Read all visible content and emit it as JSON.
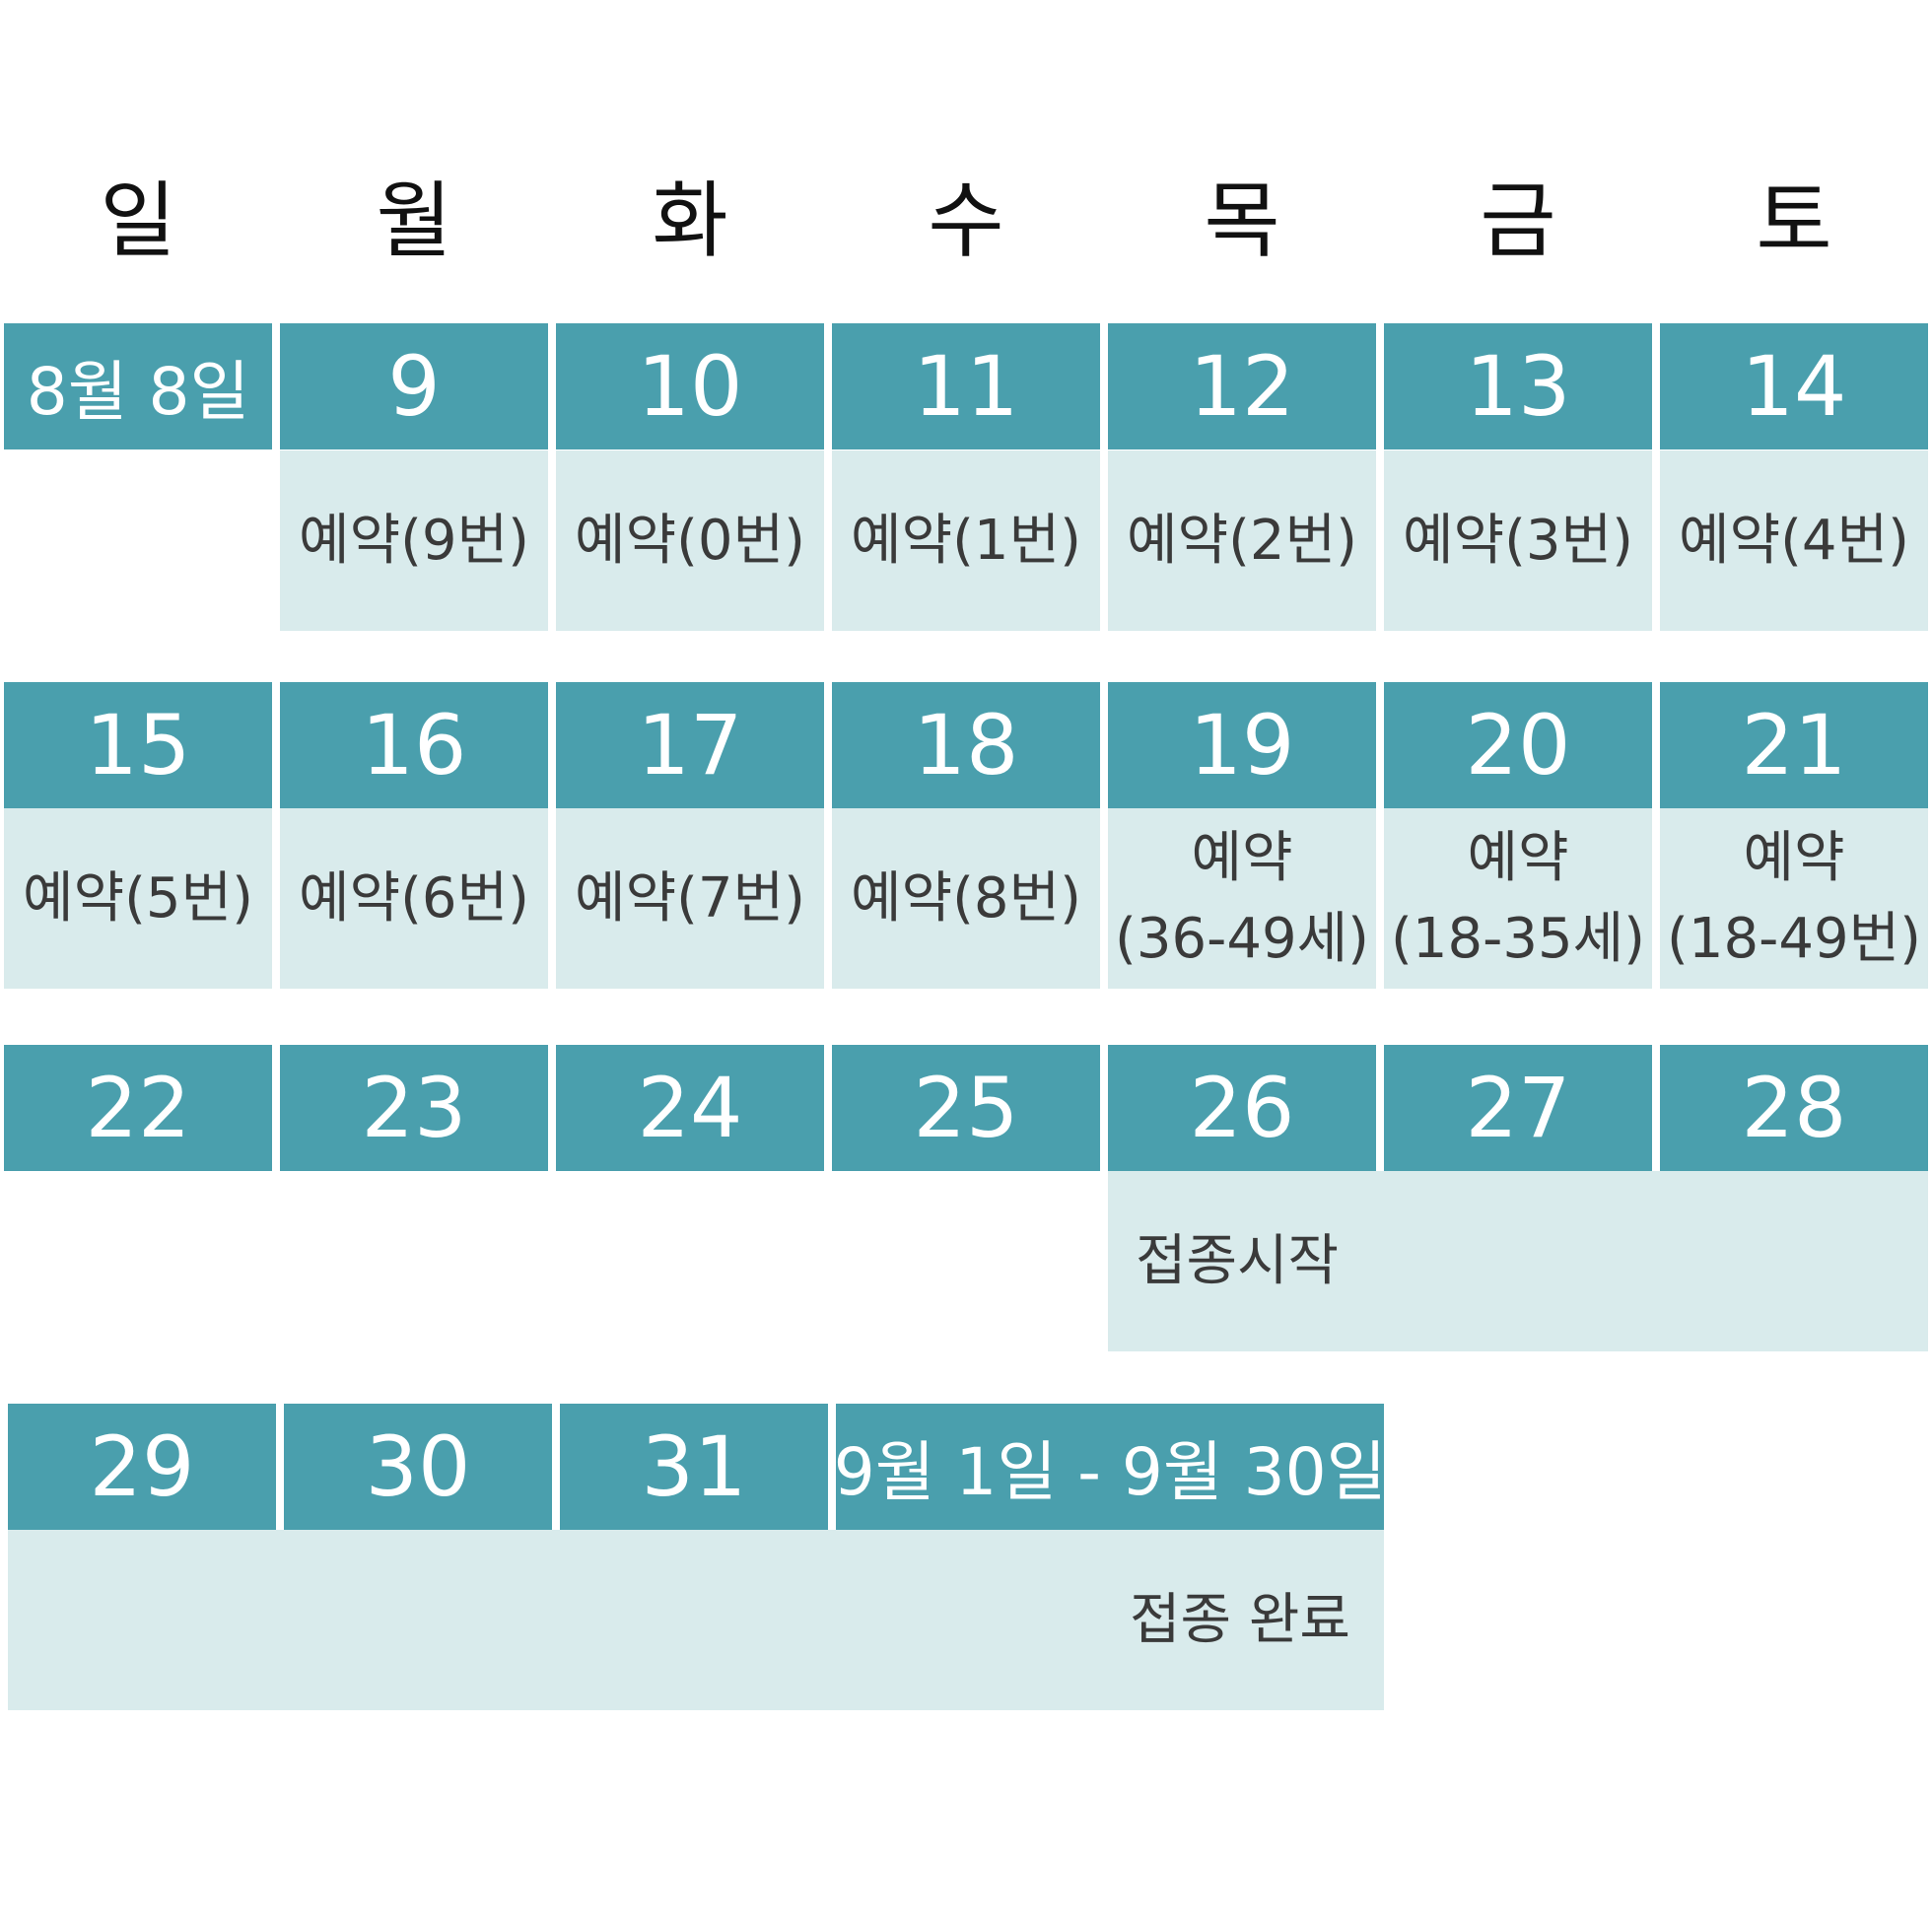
{
  "weekdays": [
    "일",
    "월",
    "화",
    "수",
    "목",
    "금",
    "토"
  ],
  "colors": {
    "header_bg": "#4a9fad",
    "cell_bg": "#d9ebec",
    "header_text": "#ffffff",
    "cell_text": "#3a3a3a"
  },
  "week1": {
    "days": [
      "8월 8일",
      "9",
      "10",
      "11",
      "12",
      "13",
      "14"
    ],
    "events": [
      "예약(9번)",
      "예약(0번)",
      "예약(1번)",
      "예약(2번)",
      "예약(3번)",
      "예약(4번)"
    ]
  },
  "week2": {
    "days": [
      "15",
      "16",
      "17",
      "18",
      "19",
      "20",
      "21"
    ],
    "events": [
      "예약(5번)",
      "예약(6번)",
      "예약(7번)",
      "예약(8번)"
    ],
    "age_events": [
      {
        "line1": "예약",
        "line2": "(36-49세)"
      },
      {
        "line1": "예약",
        "line2": "(18-35세)"
      },
      {
        "line1": "예약",
        "line2": "(18-49번)"
      }
    ]
  },
  "week3": {
    "days": [
      "22",
      "23",
      "24",
      "25",
      "26",
      "27",
      "28"
    ],
    "event": "접종시작"
  },
  "week4": {
    "days": [
      "29",
      "30",
      "31",
      "9월 1일 - 9월 30일"
    ],
    "event": "접종 완료"
  }
}
